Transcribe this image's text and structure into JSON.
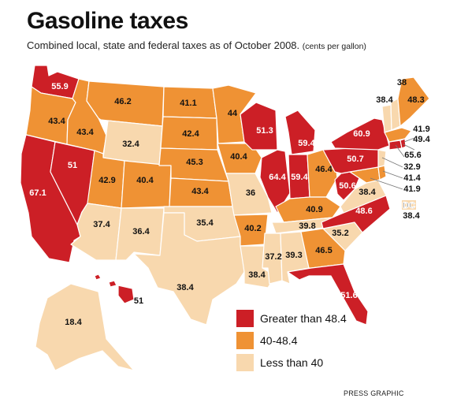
{
  "title": "Gasoline taxes",
  "subtitle": "Combined local, state and federal taxes as of October 2008.",
  "subtitle_unit": "(cents per gallon)",
  "credit": "PRESS GRAPHIC",
  "legend": [
    {
      "key": "high",
      "label": "Greater than 48.4",
      "color": "#cc1f26"
    },
    {
      "key": "mid",
      "label": "40-48.4",
      "color": "#ef9234"
    },
    {
      "key": "low",
      "label": "Less than 40",
      "color": "#f8d8ae"
    }
  ],
  "states": [
    {
      "id": "WA",
      "value": "55.9",
      "category": "high"
    },
    {
      "id": "OR",
      "value": "43.4",
      "category": "mid"
    },
    {
      "id": "CA",
      "value": "67.1",
      "category": "high"
    },
    {
      "id": "NV",
      "value": "51",
      "category": "high"
    },
    {
      "id": "ID",
      "value": "43.4",
      "category": "mid"
    },
    {
      "id": "MT",
      "value": "46.2",
      "category": "mid"
    },
    {
      "id": "WY",
      "value": "32.4",
      "category": "low"
    },
    {
      "id": "UT",
      "value": "42.9",
      "category": "mid"
    },
    {
      "id": "AZ",
      "value": "37.4",
      "category": "low"
    },
    {
      "id": "CO",
      "value": "40.4",
      "category": "mid"
    },
    {
      "id": "NM",
      "value": "36.4",
      "category": "low"
    },
    {
      "id": "ND",
      "value": "41.1",
      "category": "mid"
    },
    {
      "id": "SD",
      "value": "42.4",
      "category": "mid"
    },
    {
      "id": "NE",
      "value": "45.3",
      "category": "mid"
    },
    {
      "id": "KS",
      "value": "43.4",
      "category": "mid"
    },
    {
      "id": "OK",
      "value": "35.4",
      "category": "low"
    },
    {
      "id": "TX",
      "value": "38.4",
      "category": "low"
    },
    {
      "id": "MN",
      "value": "44",
      "category": "mid"
    },
    {
      "id": "IA",
      "value": "40.4",
      "category": "mid"
    },
    {
      "id": "MO",
      "value": "36",
      "category": "low"
    },
    {
      "id": "AR",
      "value": "40.2",
      "category": "mid"
    },
    {
      "id": "LA",
      "value": "38.4",
      "category": "low"
    },
    {
      "id": "WI",
      "value": "51.3",
      "category": "high"
    },
    {
      "id": "IL",
      "value": "64.4",
      "category": "high"
    },
    {
      "id": "MI",
      "value": "59.4",
      "category": "high"
    },
    {
      "id": "IN",
      "value": "59.4",
      "category": "high"
    },
    {
      "id": "OH",
      "value": "46.4",
      "category": "mid"
    },
    {
      "id": "KY",
      "value": "40.9",
      "category": "mid"
    },
    {
      "id": "TN",
      "value": "39.8",
      "category": "low"
    },
    {
      "id": "MS",
      "value": "37.2",
      "category": "low"
    },
    {
      "id": "AL",
      "value": "39.3",
      "category": "low"
    },
    {
      "id": "GA",
      "value": "46.5",
      "category": "mid"
    },
    {
      "id": "FL",
      "value": "51.6",
      "category": "high"
    },
    {
      "id": "SC",
      "value": "35.2",
      "category": "low"
    },
    {
      "id": "NC",
      "value": "48.6",
      "category": "high"
    },
    {
      "id": "VA",
      "value": "38.4",
      "category": "low"
    },
    {
      "id": "WV",
      "value": "50.6",
      "category": "high"
    },
    {
      "id": "PA",
      "value": "50.7",
      "category": "high"
    },
    {
      "id": "NY",
      "value": "60.9",
      "category": "high"
    },
    {
      "id": "VT",
      "value": "38.4",
      "category": "low"
    },
    {
      "id": "NH",
      "value": "38",
      "category": "low"
    },
    {
      "id": "ME",
      "value": "48.3",
      "category": "mid"
    },
    {
      "id": "MA",
      "value": "41.9",
      "category": "mid"
    },
    {
      "id": "RI",
      "value": "49.4",
      "category": "high"
    },
    {
      "id": "CT",
      "value": "65.6",
      "category": "high"
    },
    {
      "id": "NJ",
      "value": "32.9",
      "category": "low"
    },
    {
      "id": "DE",
      "value": "41.4",
      "category": "mid"
    },
    {
      "id": "MD",
      "value": "41.9",
      "category": "mid"
    },
    {
      "id": "DC",
      "value": "38.4",
      "category": "low"
    },
    {
      "id": "AK",
      "value": "18.4",
      "category": "low"
    },
    {
      "id": "HI",
      "value": "51",
      "category": "high"
    }
  ],
  "dc_tag": "DC"
}
